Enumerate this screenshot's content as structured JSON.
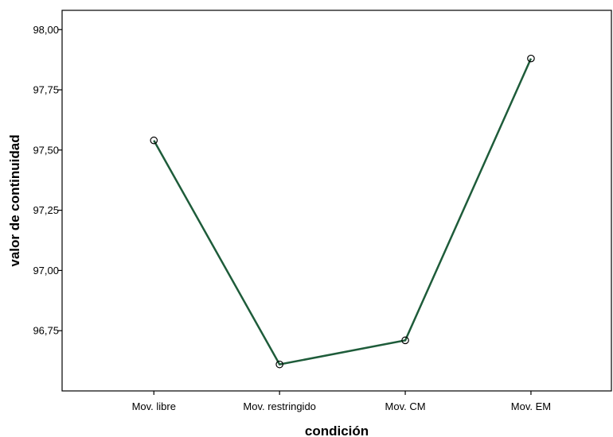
{
  "chart_data": {
    "type": "line",
    "xlabel": "condición",
    "ylabel": "valor de continuidad",
    "categories": [
      "Mov. libre",
      "Mov. restringido",
      "Mov. CM",
      "Mov. EM"
    ],
    "values": [
      97.54,
      96.61,
      96.71,
      97.88
    ],
    "yticks": [
      "96,75",
      "97,00",
      "97,25",
      "97,50",
      "97,75",
      "98,00"
    ],
    "ylim": [
      96.5,
      98.08
    ],
    "grid": false,
    "line_color": "#1e5c3a",
    "marker": "open-circle"
  }
}
